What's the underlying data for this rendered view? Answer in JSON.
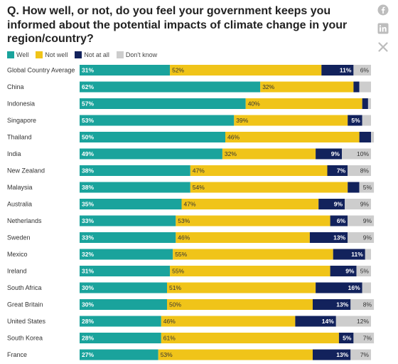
{
  "header": {
    "question": "Q. How well, or not, do you feel your government keeps you informed about the potential impacts of climate change in your region/country?"
  },
  "share": {
    "icons": [
      "facebook-icon",
      "linkedin-icon",
      "x-icon"
    ]
  },
  "colors": {
    "well": "#1aa39c",
    "not_well": "#f0c419",
    "not_at_all": "#12225c",
    "dont_know": "#cdcdcd"
  },
  "chart_data": {
    "type": "bar",
    "orientation": "horizontal",
    "stacked": true,
    "legend_position": "top-left",
    "grid": false,
    "xlim": [
      0,
      100
    ],
    "categories": [
      "Global Country Average",
      "China",
      "Indonesia",
      "Singapore",
      "Thailand",
      "India",
      "New Zealand",
      "Malaysia",
      "Australia",
      "Netherlands",
      "Sweden",
      "Mexico",
      "Ireland",
      "South Africa",
      "Great Britain",
      "United States",
      "South Korea",
      "France"
    ],
    "series": [
      {
        "name": "Well",
        "values": [
          31,
          62,
          57,
          53,
          50,
          49,
          38,
          38,
          35,
          33,
          33,
          32,
          31,
          30,
          30,
          28,
          28,
          27
        ],
        "labels": [
          "31%",
          "62%",
          "57%",
          "53%",
          "50%",
          "49%",
          "38%",
          "38%",
          "35%",
          "33%",
          "33%",
          "32%",
          "31%",
          "30%",
          "30%",
          "28%",
          "28%",
          "27%"
        ]
      },
      {
        "name": "Not well",
        "values": [
          52,
          32,
          40,
          39,
          46,
          32,
          47,
          54,
          47,
          53,
          46,
          55,
          55,
          51,
          50,
          46,
          61,
          53
        ],
        "labels": [
          "52%",
          "32%",
          "40%",
          "39%",
          "46%",
          "32%",
          "47%",
          "54%",
          "47%",
          "53%",
          "46%",
          "55%",
          "55%",
          "51%",
          "50%",
          "46%",
          "61%",
          "53%"
        ]
      },
      {
        "name": "Not at all",
        "values": [
          11,
          2,
          2,
          5,
          4,
          9,
          7,
          4,
          9,
          6,
          13,
          11,
          9,
          16,
          13,
          14,
          5,
          13
        ],
        "labels": [
          "11%",
          "",
          "",
          "5%",
          "",
          "9%",
          "7%",
          "",
          "9%",
          "6%",
          "13%",
          "11%",
          "9%",
          "16%",
          "13%",
          "14%",
          "5%",
          "13%"
        ]
      },
      {
        "name": "Don't know",
        "values": [
          6,
          4,
          1,
          3,
          1,
          10,
          8,
          5,
          9,
          9,
          9,
          2,
          5,
          3,
          8,
          12,
          7,
          7
        ],
        "labels": [
          "6%",
          "",
          "",
          "",
          "",
          "10%",
          "8%",
          "5%",
          "9%",
          "9%",
          "9%",
          "",
          "5%",
          "",
          "8%",
          "12%",
          "7%",
          "7%"
        ]
      }
    ]
  }
}
